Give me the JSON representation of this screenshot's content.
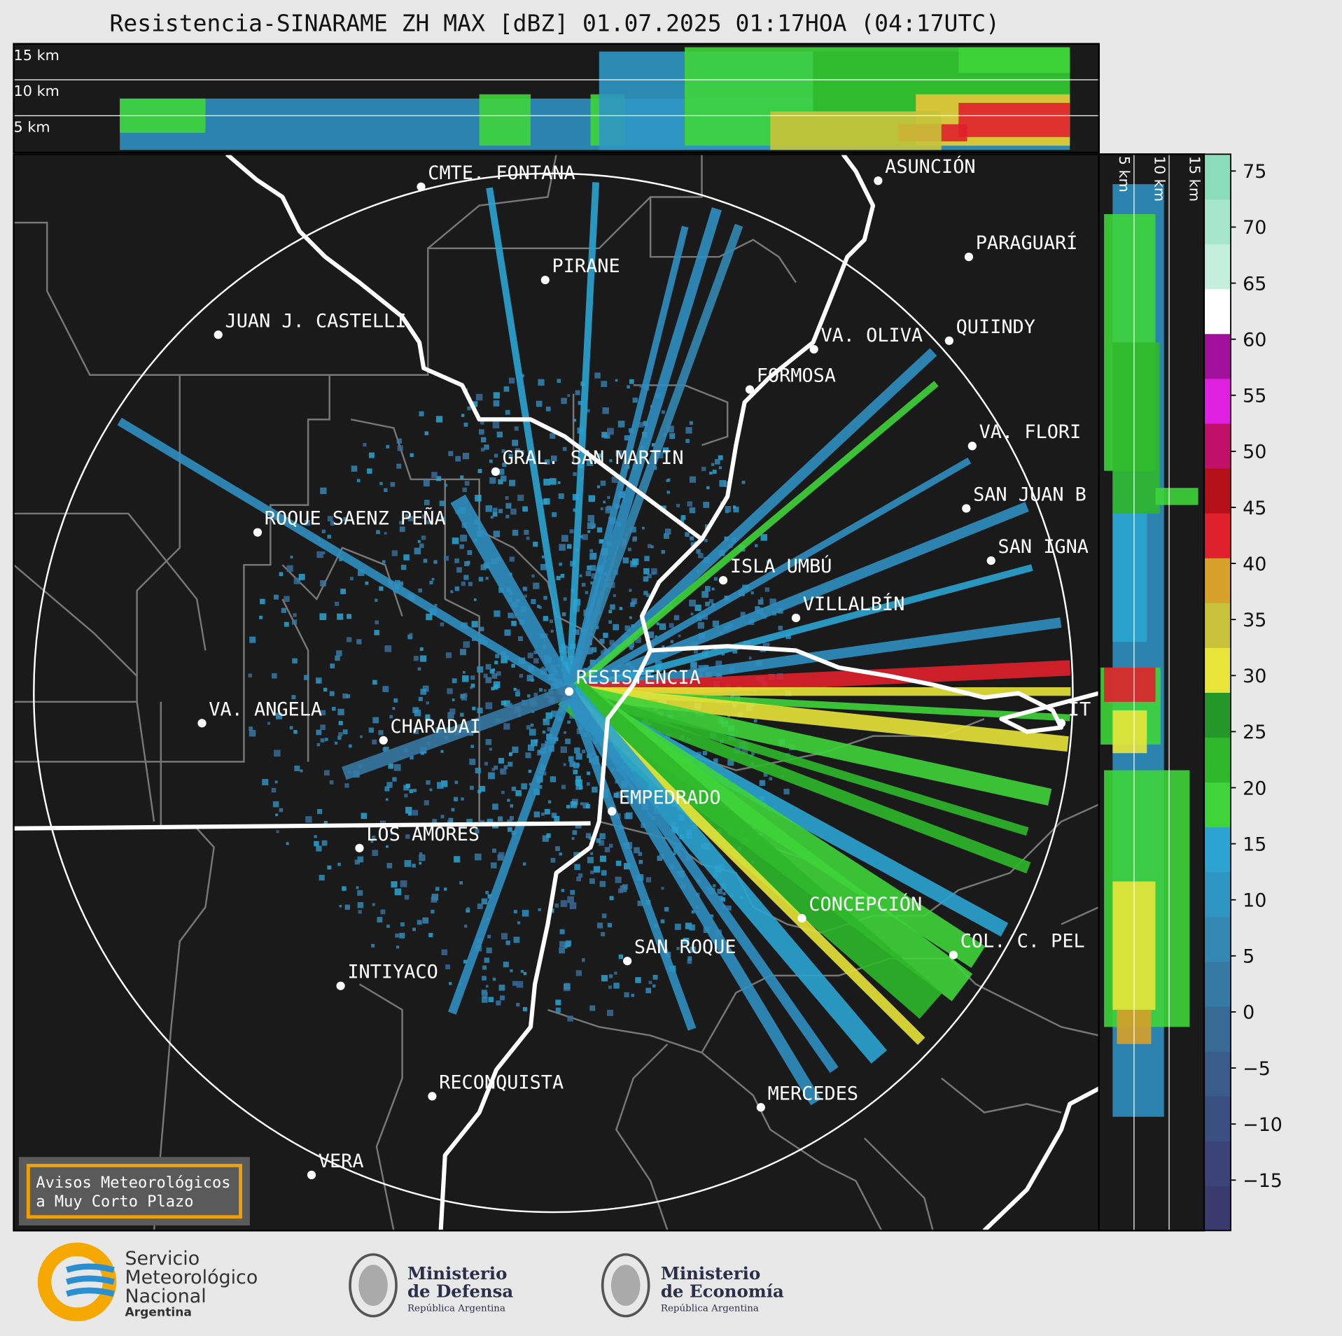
{
  "header": {
    "title": "Resistencia-SINARAME ZH MAX [dBZ] 01.07.2025 01:17HOA (04:17UTC)"
  },
  "top_panel": {
    "height_labels": [
      "15 km",
      "10 km",
      "5 km"
    ]
  },
  "side_panel": {
    "height_labels": [
      "5 km",
      "10 km",
      "15 km"
    ]
  },
  "map": {
    "cities": [
      "CMTE. FONTANA",
      "PIRANE",
      "JUAN J. CASTELLI",
      "VA. OLIVA",
      "QUIINDY",
      "FORMOSA",
      "ASUNCIÓN",
      "PARAGUARÍ",
      "VA. FLORI",
      "GRAL. SAN MARTIN",
      "SAN JUAN B",
      "ROQUE SAENZ PEÑA",
      "SAN IGNA",
      "ISLA UMBÚ",
      "VILLALBÍN",
      "RESISTENCIA",
      "VA. ANGELA",
      "CHARADAI",
      "IT",
      "EMPEDRADO",
      "LOS AMORES",
      "CONCEPCIÓN",
      "COL. C. PEL",
      "SAN ROQUE",
      "INTIYACO",
      "RECONQUISTA",
      "MERCEDES",
      "VERA"
    ]
  },
  "colorbar": {
    "lim": [
      -19.5,
      76.5
    ],
    "ticks": [
      75,
      70,
      65,
      60,
      55,
      50,
      45,
      40,
      35,
      30,
      25,
      20,
      15,
      10,
      5,
      0,
      {
        "value": -5,
        "label": "−5"
      },
      {
        "value": -10,
        "label": "−10"
      },
      {
        "value": -15,
        "label": "−15"
      }
    ],
    "colors": [
      "#3b3a6e",
      "#3c4477",
      "#3b5080",
      "#3a5c8a",
      "#386a95",
      "#3679a3",
      "#3388b4",
      "#2f96c3",
      "#2ba4d2",
      "#3fd43a",
      "#2fb82b",
      "#25962a",
      "#e8e43a",
      "#c8c23a",
      "#d7a02a",
      "#e0202c",
      "#b5101a",
      "#c0106a",
      "#e020e0",
      "#a0109a",
      "#ffffff",
      "#c4eedd",
      "#a6e6cc",
      "#8adcbb"
    ]
  },
  "warning_box": {
    "lines": [
      "Avisos Meteorológicos",
      "a Muy Corto Plazo"
    ]
  },
  "footer": {
    "smn": [
      "Servicio",
      "Meteorológico",
      "Nacional",
      "Argentina"
    ],
    "defensa": [
      "Ministerio",
      "de Defensa",
      "República Argentina"
    ],
    "economia": [
      "Ministerio",
      "de Economía",
      "República Argentina"
    ]
  }
}
